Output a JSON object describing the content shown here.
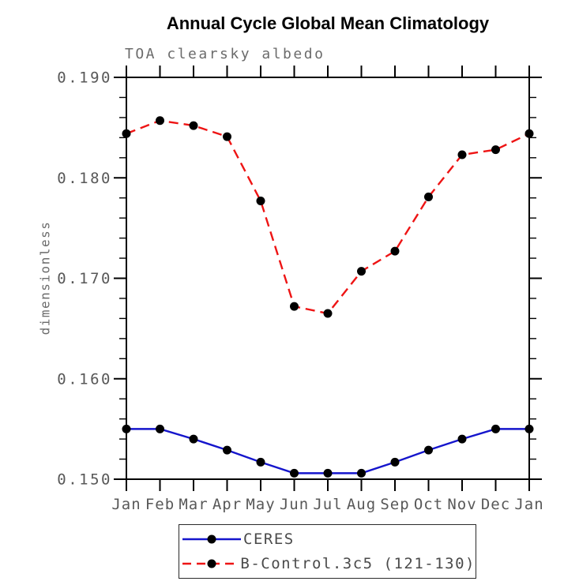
{
  "title": "Annual Cycle Global Mean Climatology",
  "subtitle": "TOA clearsky albedo",
  "chart_data": {
    "type": "line",
    "title": "Annual Cycle Global Mean Climatology",
    "subtitle": "TOA clearsky albedo",
    "xlabel": "",
    "ylabel": "dimensionless",
    "x": [
      "Jan",
      "Feb",
      "Mar",
      "Apr",
      "May",
      "Jun",
      "Jul",
      "Aug",
      "Sep",
      "Oct",
      "Nov",
      "Dec",
      "Jan"
    ],
    "ylim": [
      0.15,
      0.19
    ],
    "ytick_major_step": 0.01,
    "ytick_minor_step": 0.002,
    "ytick_labels": [
      "0.150",
      "0.160",
      "0.170",
      "0.180",
      "0.190"
    ],
    "grid": false,
    "tick_style": "outward-box",
    "legend_position": "bottom-center-boxed",
    "marker": {
      "shape": "circle",
      "color": "#000000",
      "radius": 5.5
    },
    "series": [
      {
        "name": "CERES",
        "color": "#1515cc",
        "dash": "solid",
        "values": [
          0.155,
          0.155,
          0.154,
          0.1529,
          0.1517,
          0.1506,
          0.1506,
          0.1506,
          0.1517,
          0.1529,
          0.154,
          0.155,
          0.155
        ]
      },
      {
        "name": "B-Control.3c5 (121-130)",
        "color": "#ee1414",
        "dash": "dashed",
        "values": [
          0.1844,
          0.1857,
          0.1852,
          0.1841,
          0.1777,
          0.1672,
          0.1665,
          0.1707,
          0.1727,
          0.1781,
          0.1823,
          0.1828,
          0.1844
        ]
      }
    ]
  },
  "colors": {
    "axis": "#000000",
    "tick_label": "#585858",
    "title_text": "#000000",
    "subtitle_text": "#6b6b6b",
    "legend_border": "#2a2a2a"
  }
}
